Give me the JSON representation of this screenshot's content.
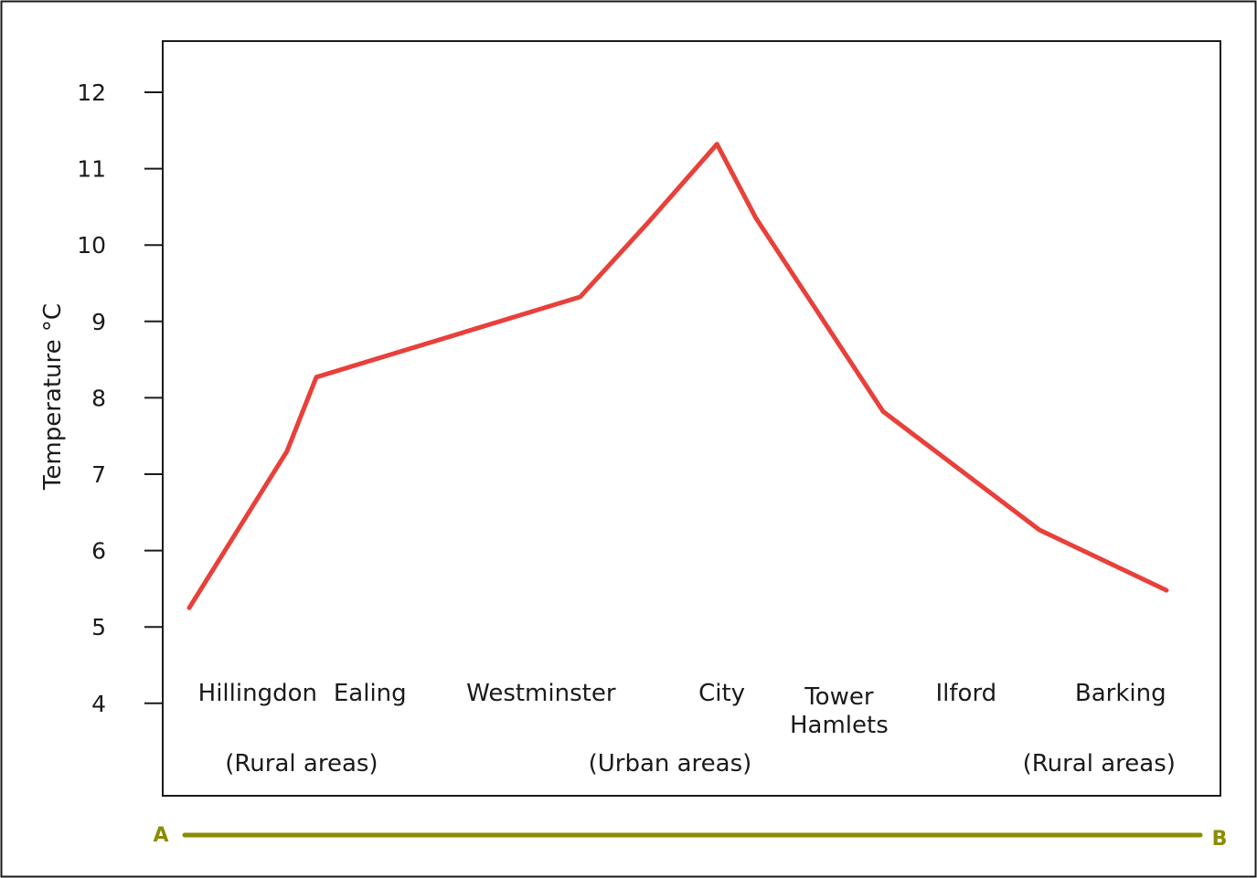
{
  "chart_data": {
    "type": "line",
    "ylabel": "Temperature °C",
    "ylim": [
      4,
      12
    ],
    "yticks": [
      "4",
      "5",
      "6",
      "7",
      "8",
      "9",
      "10",
      "11",
      "12"
    ],
    "series": [
      {
        "color": "#e8403a",
        "x": [
          0,
          0.1,
          0.13,
          0.4,
          0.47,
          0.54,
          0.58,
          0.71,
          0.87,
          1.0
        ],
        "y": [
          5.25,
          7.3,
          8.27,
          9.32,
          10.3,
          11.32,
          10.35,
          7.82,
          6.27,
          5.48
        ]
      }
    ],
    "place_labels": [
      {
        "text": "Hillingdon",
        "x": 0.07
      },
      {
        "text": "Ealing",
        "x": 0.185
      },
      {
        "text": "Westminster",
        "x": 0.36
      },
      {
        "text": "City",
        "x": 0.545
      },
      {
        "text": "Tower",
        "text2": "Hamlets",
        "x": 0.665
      },
      {
        "text": "Ilford",
        "x": 0.795
      },
      {
        "text": "Barking",
        "x": 0.953
      }
    ],
    "area_labels": [
      {
        "text": "(Rural areas)",
        "x": 0.115
      },
      {
        "text": "(Urban areas)",
        "x": 0.492
      },
      {
        "text": "(Rural areas)",
        "x": 0.931
      }
    ],
    "transect": {
      "start_label": "A",
      "end_label": "B",
      "color": "#8a8c00"
    },
    "grid": false
  }
}
